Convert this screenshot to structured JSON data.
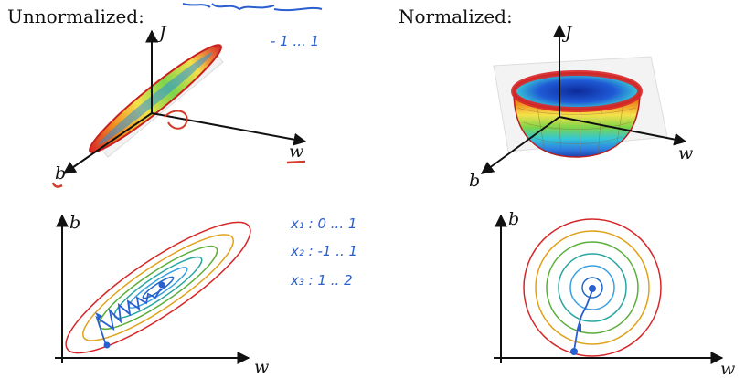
{
  "titles": {
    "left": "Unnormalized:",
    "right": "Normalized:"
  },
  "axes": {
    "J": "J",
    "w": "w",
    "b": "b"
  },
  "annotations": {
    "range_top": "- 1 ... 1",
    "x1": "x₁ : 0 ... 1",
    "x2": "x₂ : -1 .. 1",
    "x3": "x₃ : 1 .. 2"
  },
  "colors": {
    "axis": "#111111",
    "ink_blue": "#2a5fd0",
    "ink_red": "#d43a2a",
    "contours": [
      "#d62728",
      "#e0a21b",
      "#5aae3a",
      "#2aa6a0",
      "#3aa0e0",
      "#2068c8"
    ]
  }
}
